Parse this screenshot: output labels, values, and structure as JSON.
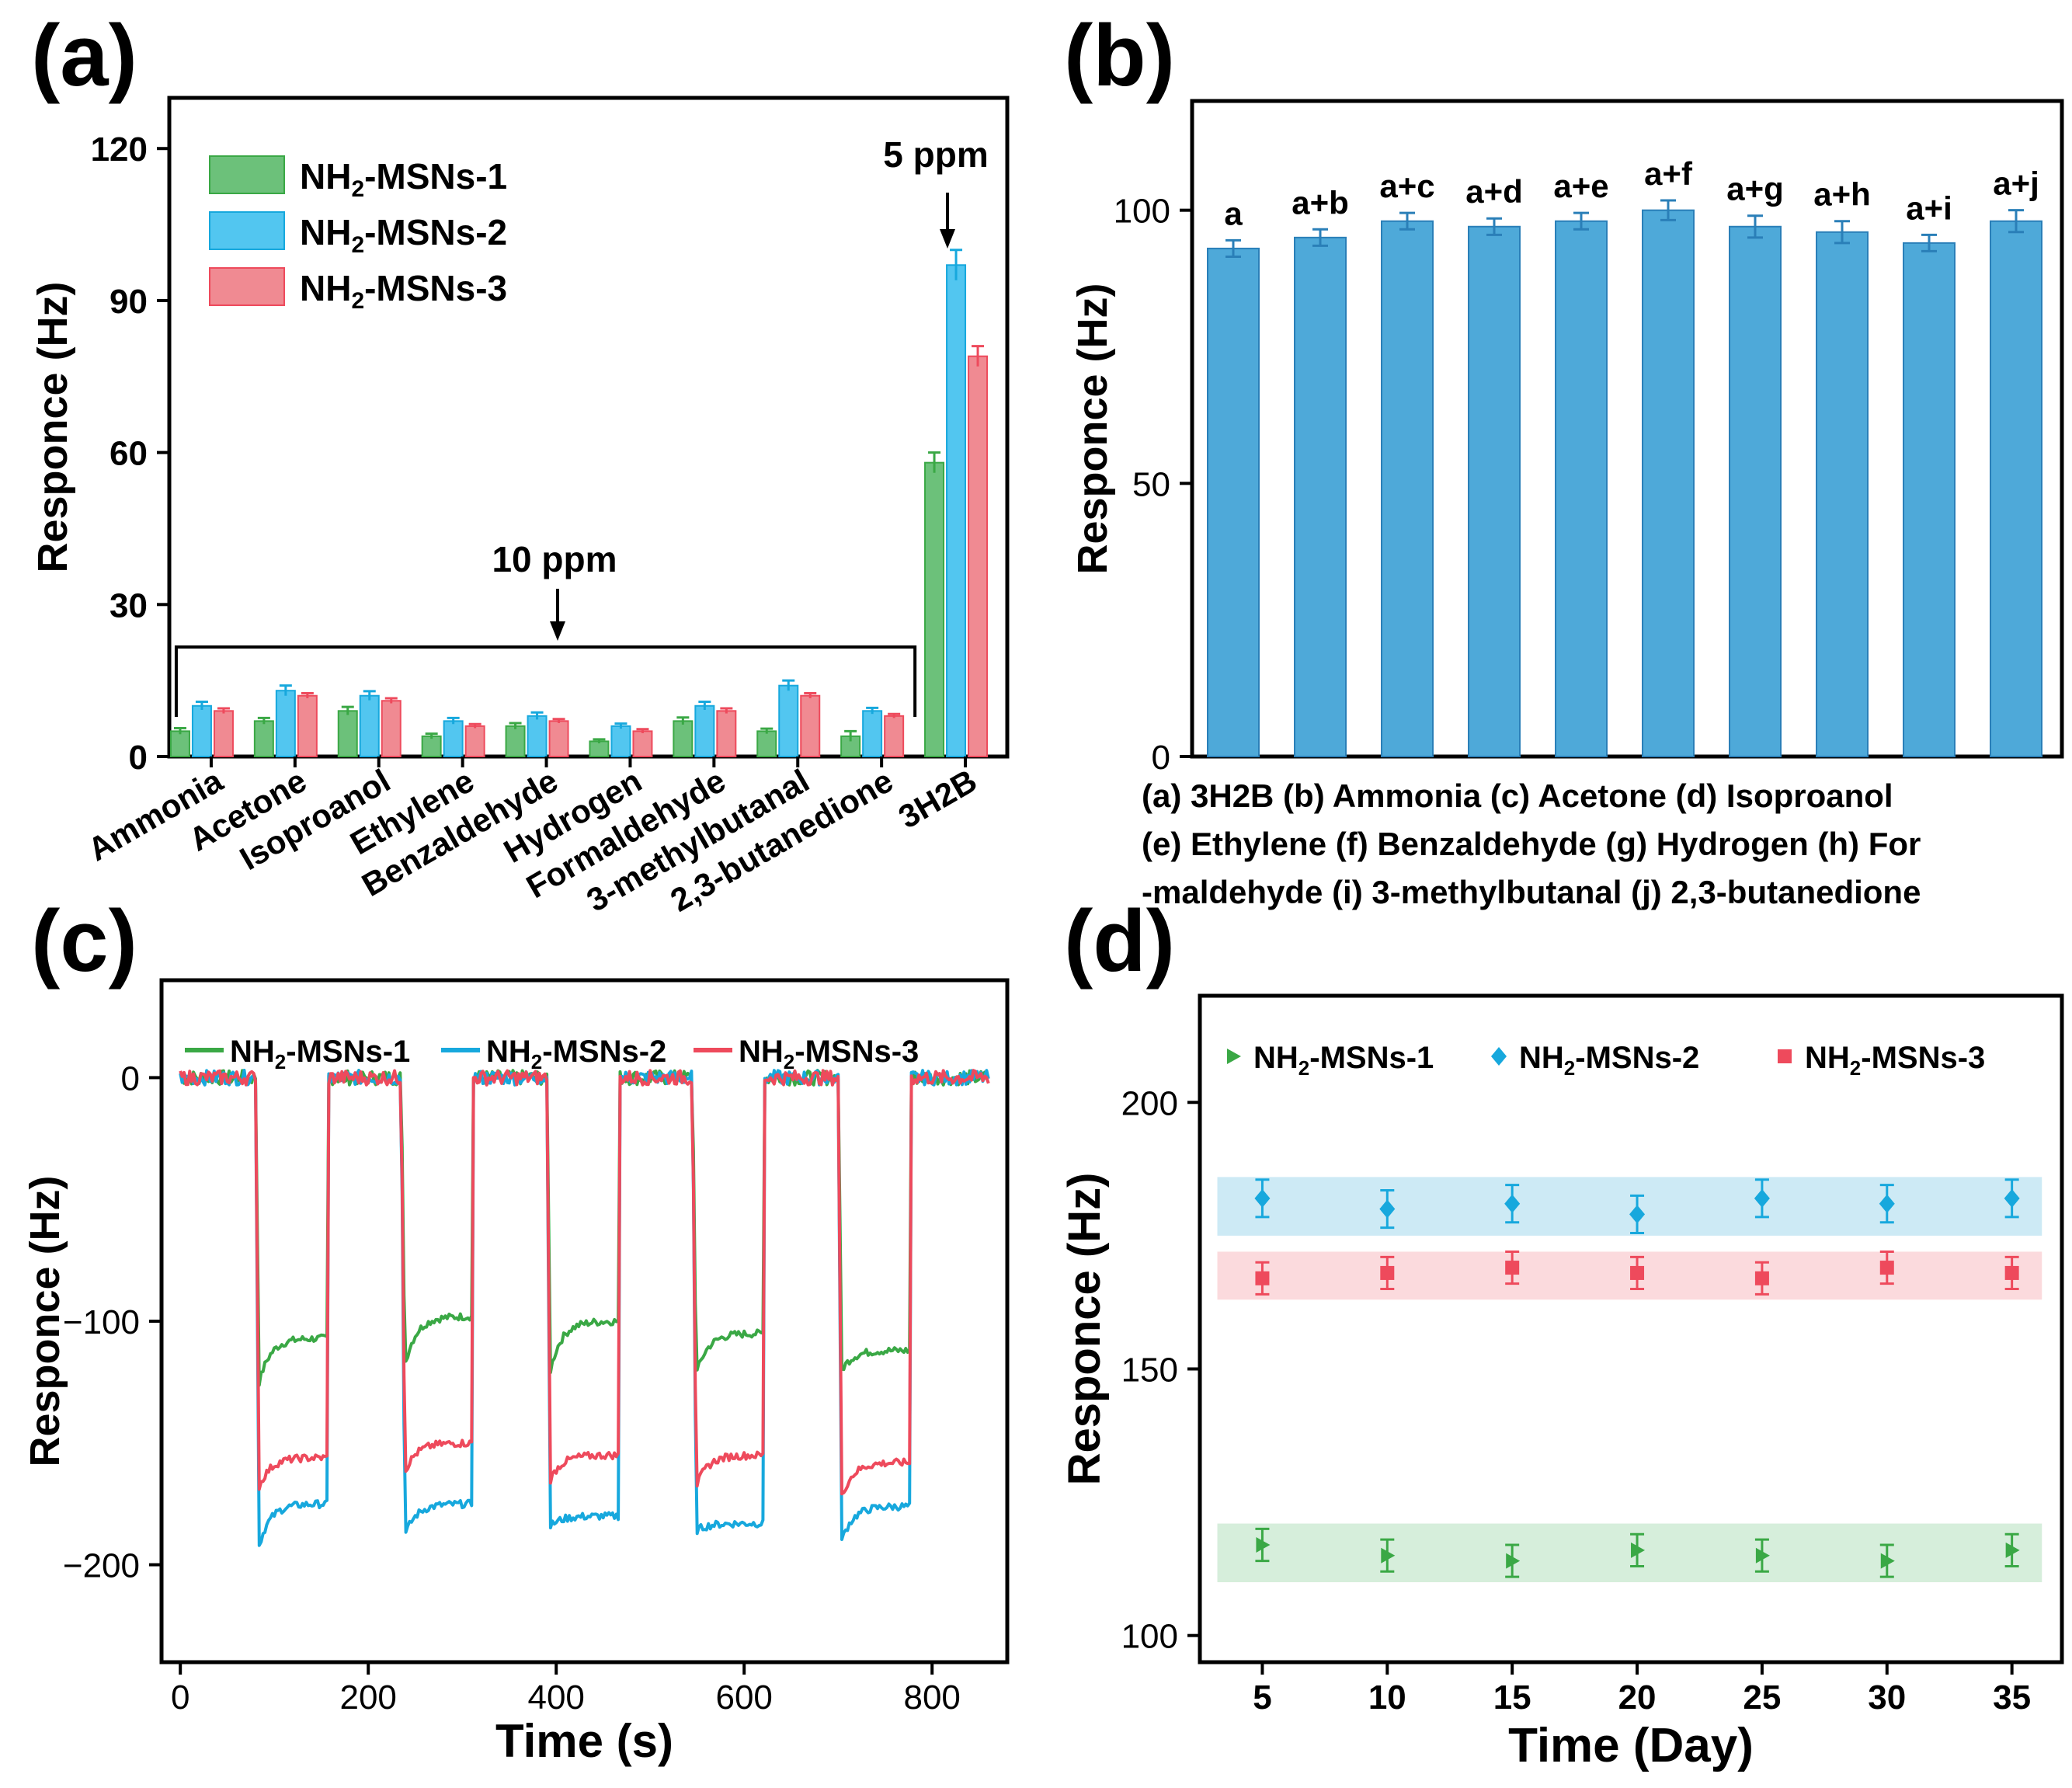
{
  "figure": {
    "panel_labels": [
      "(a)",
      "(b)",
      "(c)",
      "(d)"
    ],
    "colors": {
      "green": "#3aa845",
      "green_fill": "#6cc17a",
      "blue": "#17a8dd",
      "blue_fill": "#52c6f0",
      "red": "#ee4a5c",
      "red_fill": "#f08a92",
      "b_bar": "#4ea9d9",
      "b_edge": "#2a7fb8",
      "band_blue": "#cdeaf5",
      "band_red": "#fbdadd",
      "band_green": "#d6eedb"
    }
  },
  "chart_data": [
    {
      "panel": "(a)",
      "type": "bar",
      "title": "",
      "xlabel": "",
      "ylabel": "Responce (Hz)",
      "ylim": [
        0,
        130
      ],
      "yticks": [
        0,
        30,
        60,
        90,
        120
      ],
      "categories": [
        "Ammonia",
        "Acetone",
        "Isoproanol",
        "Ethylene",
        "Benzaldehyde",
        "Hydrogen",
        "Formaldehyde",
        "3-methylbutanal",
        "2,3-butanedione",
        "3H2B"
      ],
      "series": [
        {
          "name": "NH₂-MSNs-1",
          "values": [
            5,
            7,
            9,
            4,
            6,
            3,
            7,
            5,
            4,
            58
          ],
          "errors": [
            0.6,
            0.6,
            0.8,
            0.5,
            0.6,
            0.4,
            0.7,
            0.5,
            1.0,
            2.0
          ]
        },
        {
          "name": "NH₂-MSNs-2",
          "values": [
            10,
            13,
            12,
            7,
            8,
            6,
            10,
            14,
            9,
            97
          ],
          "errors": [
            0.8,
            1.0,
            0.9,
            0.6,
            0.7,
            0.5,
            0.8,
            1.0,
            0.6,
            3.0
          ]
        },
        {
          "name": "NH₂-MSNs-3",
          "values": [
            9,
            12,
            11,
            6,
            7,
            5,
            9,
            12,
            8,
            79
          ],
          "errors": [
            0.5,
            0.5,
            0.5,
            0.4,
            0.4,
            0.4,
            0.5,
            0.5,
            0.4,
            2.0
          ]
        }
      ],
      "annotations": [
        "10 ppm",
        "5 ppm"
      ],
      "legend": "top-left"
    },
    {
      "panel": "(b)",
      "type": "bar",
      "xlabel": "",
      "ylabel": "Responce (Hz)",
      "ylim": [
        0,
        120
      ],
      "yticks": [
        0,
        50,
        100
      ],
      "categories": [
        "a",
        "a+b",
        "a+c",
        "a+d",
        "a+e",
        "a+f",
        "a+g",
        "a+h",
        "a+i",
        "a+j"
      ],
      "values": [
        93,
        95,
        98,
        97,
        98,
        100,
        97,
        96,
        94,
        98
      ],
      "errors": [
        1.5,
        1.5,
        1.5,
        1.5,
        1.5,
        1.8,
        2.0,
        2.0,
        1.5,
        2.0
      ],
      "caption": [
        "(a) 3H2B (b) Ammonia  (c) Acetone (d) Isoproanol",
        "(e) Ethylene (f) Benzaldehyde (g) Hydrogen (h) For",
        "-maldehyde (i) 3-methylbutanal (j) 2,3-butanedione"
      ]
    },
    {
      "panel": "(c)",
      "type": "line",
      "xlabel": "Time (s)",
      "ylabel": "Responce (Hz)",
      "xlim": [
        -20,
        880
      ],
      "ylim": [
        -240,
        40
      ],
      "xticks": [
        0,
        200,
        400,
        600,
        800
      ],
      "yticks": [
        -200,
        -100,
        0
      ],
      "cycles_on": [
        [
          80,
          157
        ],
        [
          235,
          311
        ],
        [
          390,
          466
        ],
        [
          545,
          621
        ],
        [
          700,
          777
        ]
      ],
      "x_end": 860,
      "series": [
        {
          "name": "NH₂-MSNs-1",
          "peaks": [
            -125,
            -118,
            -120,
            -122,
            -120
          ],
          "plateaus": [
            -107,
            -98,
            -100,
            -105,
            -112
          ]
        },
        {
          "name": "NH₂-MSNs-2",
          "peaks": [
            -192,
            -188,
            -184,
            -186,
            -190
          ],
          "plateaus": [
            -175,
            -175,
            -180,
            -183,
            -176
          ]
        },
        {
          "name": "NH₂-MSNs-3",
          "peaks": [
            -168,
            -162,
            -165,
            -168,
            -172
          ],
          "plateaus": [
            -156,
            -150,
            -155,
            -155,
            -158
          ]
        }
      ],
      "legend": "top"
    },
    {
      "panel": "(d)",
      "type": "scatter",
      "xlabel": "Time (Day)",
      "ylabel": "Responce (Hz)",
      "xlim": [
        2.5,
        37
      ],
      "ylim": [
        95,
        220
      ],
      "xticks": [
        5,
        10,
        15,
        20,
        25,
        30,
        35
      ],
      "yticks": [
        100,
        150,
        200
      ],
      "x": [
        5,
        10,
        15,
        20,
        25,
        30,
        35
      ],
      "series": [
        {
          "name": "NH₂-MSNs-1",
          "marker": "triangle",
          "values": [
            117,
            115,
            114,
            116,
            115,
            114,
            116
          ],
          "errors": [
            3,
            3,
            3,
            3,
            3,
            3,
            3
          ],
          "band": [
            110,
            121
          ]
        },
        {
          "name": "NH₂-MSNs-2",
          "marker": "diamond",
          "values": [
            182,
            180,
            181,
            179,
            182,
            181,
            182
          ],
          "errors": [
            3.5,
            3.5,
            3.5,
            3.5,
            3.5,
            3.5,
            3.5
          ],
          "band": [
            175,
            186
          ]
        },
        {
          "name": "NH₂-MSNs-3",
          "marker": "square",
          "values": [
            167,
            168,
            169,
            168,
            167,
            169,
            168
          ],
          "errors": [
            3,
            3,
            3,
            3,
            3,
            3,
            3
          ],
          "band": [
            163,
            172
          ]
        }
      ],
      "legend": "top"
    }
  ]
}
